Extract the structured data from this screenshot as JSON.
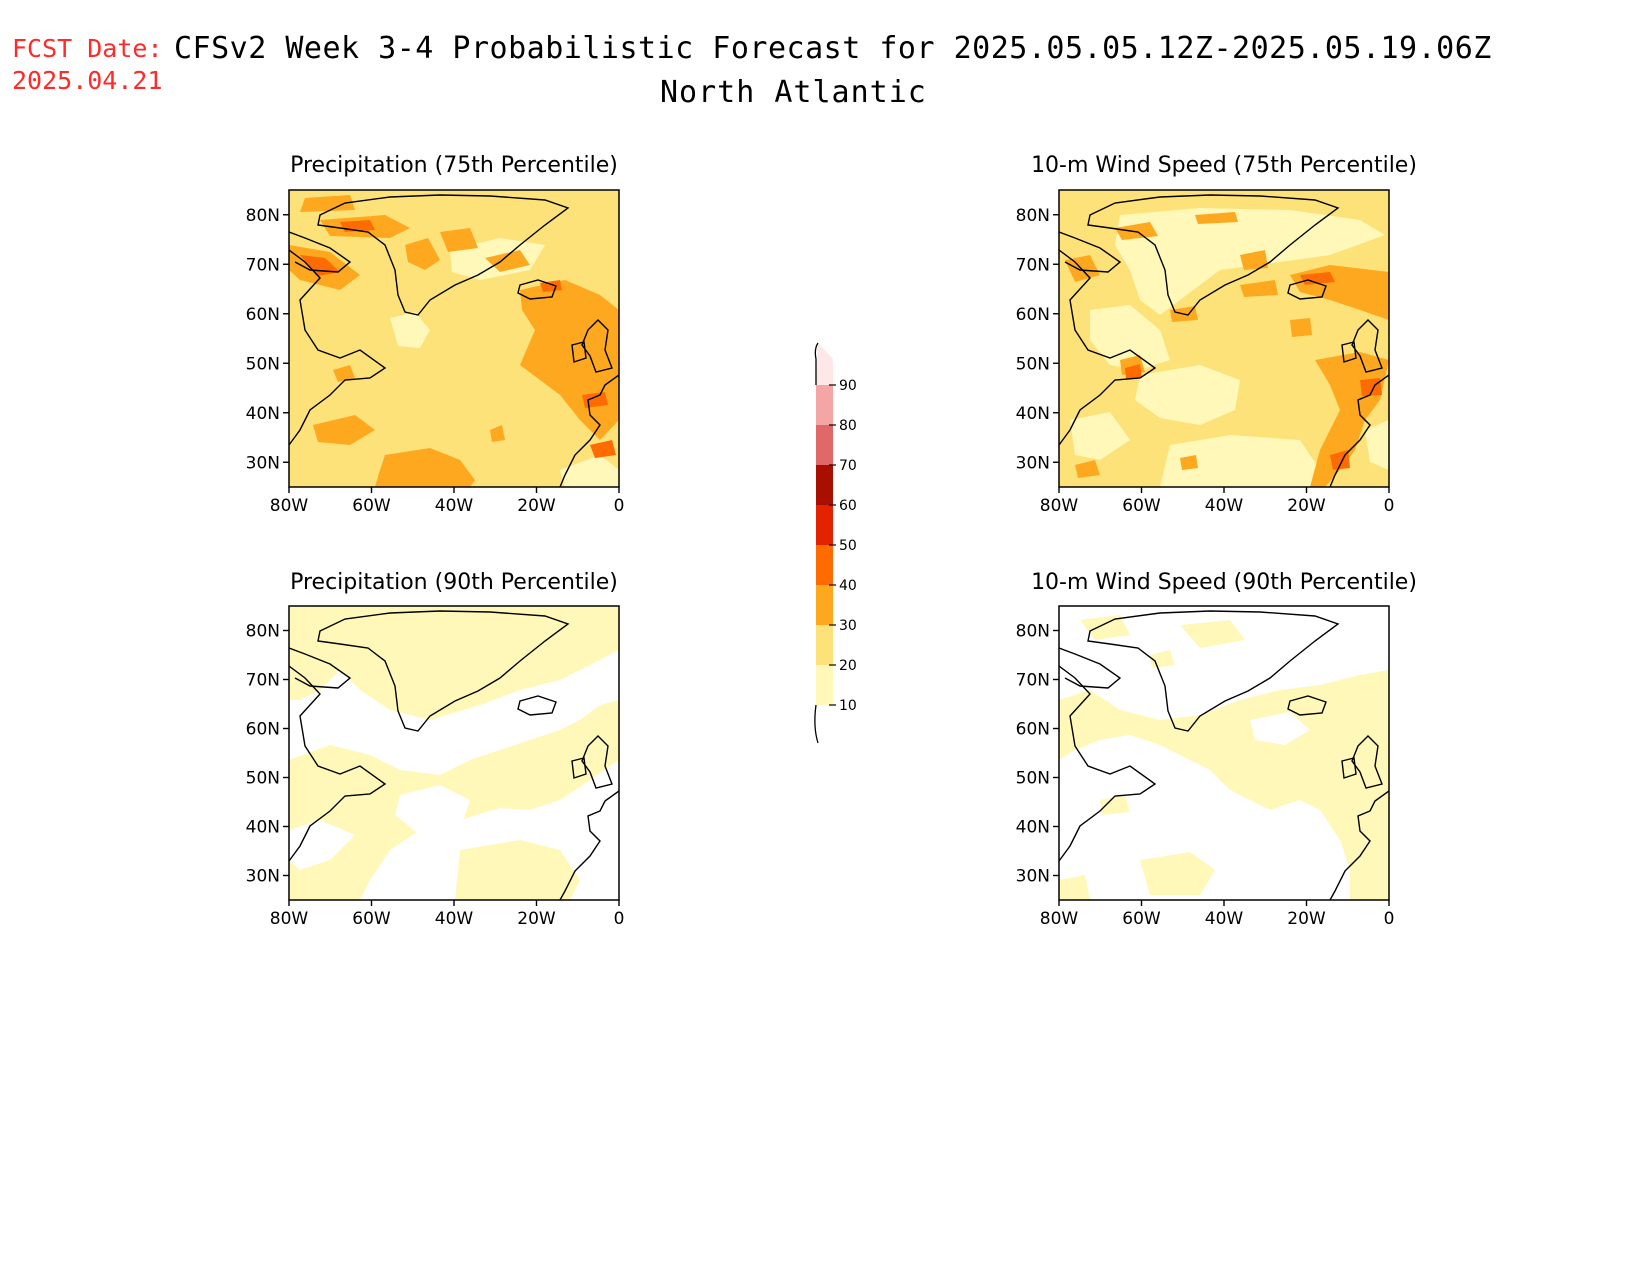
{
  "header": {
    "fcst_label": "FCST Date:",
    "fcst_date": "2025.04.21",
    "title": "CFSv2 Week 3-4 Probabilistic Forecast for 2025.05.05.12Z-2025.05.19.06Z",
    "subtitle": "North Atlantic"
  },
  "axes": {
    "lat_labels": [
      "80N",
      "70N",
      "60N",
      "50N",
      "40N",
      "30N"
    ],
    "lat_values": [
      80,
      70,
      60,
      50,
      40,
      30
    ],
    "lat_range": [
      25,
      85
    ],
    "lon_labels": [
      "80W",
      "60W",
      "40W",
      "20W",
      "0"
    ],
    "lon_values": [
      -80,
      -60,
      -40,
      -20,
      0
    ],
    "lon_range": [
      -80,
      0
    ]
  },
  "colors": {
    "c10": "#fff8b8",
    "c20": "#fde27a",
    "c30": "#fda81e",
    "c40": "#fe6b00",
    "c50": "#e32300",
    "c60": "#a80f00",
    "c70": "#e06868",
    "c80": "#f4a5a5",
    "c90": "#fde7e7",
    "coast": "#000000"
  },
  "panels": [
    {
      "id": "precip-75",
      "title": "Precipitation (75th Percentile)",
      "background": "#fde27a"
    },
    {
      "id": "wind-75",
      "title": "10-m Wind Speed (75th Percentile)",
      "background": "#fde27a"
    },
    {
      "id": "precip-90",
      "title": "Precipitation (90th Percentile)",
      "background": "#ffffff"
    },
    {
      "id": "wind-90",
      "title": "10-m Wind Speed (90th Percentile)",
      "background": "#ffffff"
    }
  ],
  "colorbar": {
    "levels": [
      10,
      20,
      30,
      40,
      50,
      60,
      70,
      80,
      90
    ],
    "labels": [
      "10",
      "20",
      "30",
      "40",
      "50",
      "60",
      "70",
      "80",
      "90"
    ],
    "colors": [
      "#fff8b8",
      "#fde27a",
      "#fda81e",
      "#fe6b00",
      "#e32300",
      "#a80f00",
      "#e06868",
      "#f4a5a5",
      "#fde7e7"
    ]
  }
}
